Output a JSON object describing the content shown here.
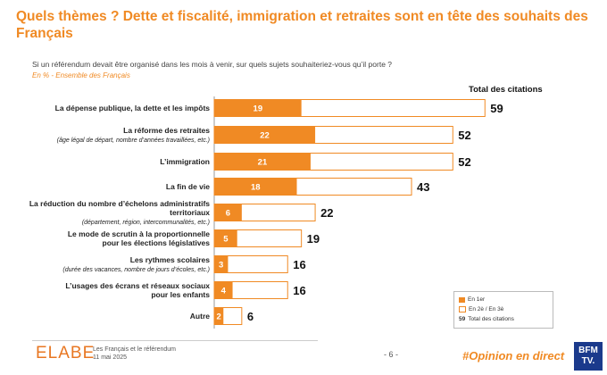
{
  "header": {
    "title": "Quels thèmes ? Dette et fiscalité, immigration et retraites sont en tête des souhaits des Français",
    "question": "Si un référendum devait être organisé dans les mois à venir, sur quels sujets souhaiteriez-vous qu’il porte ?",
    "unit": "En % - Ensemble des Français"
  },
  "chart_data": {
    "type": "bar",
    "orientation": "horizontal",
    "total_header": "Total des citations",
    "categories": [
      {
        "label": "La dépense publique, la dette et les impôts",
        "sub": ""
      },
      {
        "label": "La réforme des retraites",
        "sub": "(âge légal de départ, nombre d’années travaillées, etc.)"
      },
      {
        "label": "L’immigration",
        "sub": ""
      },
      {
        "label": "La fin de vie",
        "sub": ""
      },
      {
        "label": "La réduction du nombre d’échelons administratifs",
        "label2": "territoriaux",
        "sub": "(département, région, intercommunalités, etc.)"
      },
      {
        "label": "Le mode de scrutin à la proportionnelle",
        "label2": "pour les élections législatives",
        "sub": ""
      },
      {
        "label": "Les rythmes scolaires",
        "sub": "(durée des vacances, nombre de jours d’écoles, etc.)"
      },
      {
        "label": "L’usages des écrans et réseaux sociaux",
        "label2": "pour les enfants",
        "sub": ""
      },
      {
        "label": "Autre",
        "sub": ""
      }
    ],
    "series": [
      {
        "name": "En 1er",
        "values": [
          19,
          22,
          21,
          18,
          6,
          5,
          3,
          4,
          2
        ]
      },
      {
        "name": "Total des citations",
        "values": [
          59,
          52,
          52,
          43,
          22,
          19,
          16,
          16,
          6
        ]
      }
    ],
    "colors": {
      "first": "#f08a24",
      "outline": "#f08a24"
    }
  },
  "legend": {
    "first": "En 1er",
    "other": "En 2è / En 3è",
    "total_num": "59",
    "total": "Total des citations"
  },
  "footer": {
    "brand": "ELABE",
    "study": "Les Français et le référendum",
    "date": "11 mai 2025",
    "page": "- 6 -",
    "hashtag": "#Opinion en direct",
    "logo_line1": "BFM",
    "logo_line2": "TV."
  }
}
